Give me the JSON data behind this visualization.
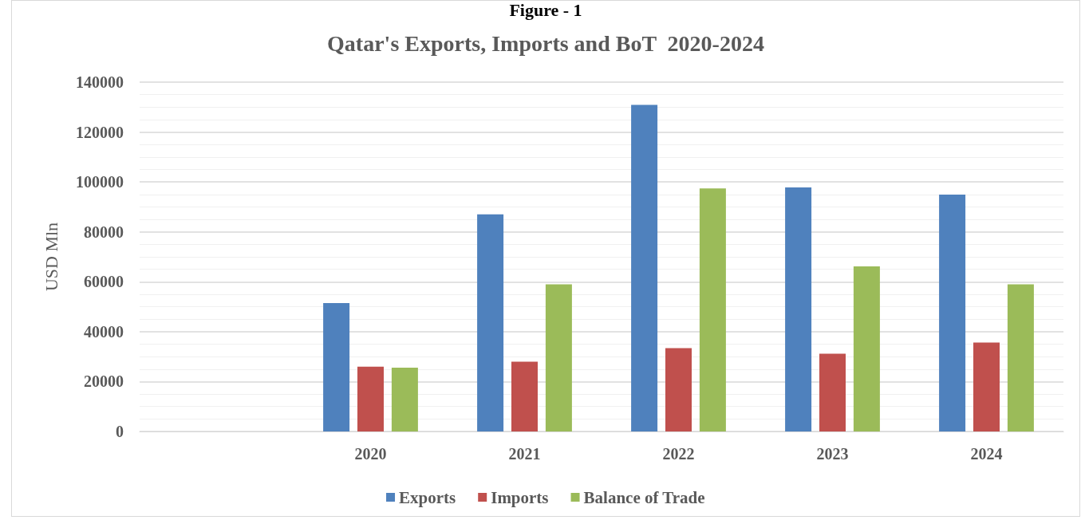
{
  "chart_data": {
    "type": "bar",
    "title": "Qatar's Exports, Imports and BoT  2020-2024",
    "ylabel": "USD Mln",
    "annotations": [
      "Figure - 1"
    ],
    "categories": [
      null,
      "2020",
      "2021",
      "2022",
      "2023",
      "2024"
    ],
    "series": [
      {
        "name": "Exports",
        "color": "#4f81bd",
        "values": [
          null,
          51500,
          87000,
          130900,
          97800,
          94900
        ]
      },
      {
        "name": "Imports",
        "color": "#c0504d",
        "values": [
          null,
          26000,
          28000,
          33400,
          31200,
          35600
        ]
      },
      {
        "name": "Balance of Trade",
        "color": "#9bbb59",
        "values": [
          null,
          25600,
          59000,
          97400,
          66200,
          59000
        ]
      }
    ],
    "ylim": [
      0,
      140000
    ],
    "yticks": [
      0,
      20000,
      40000,
      60000,
      80000,
      100000,
      120000,
      140000
    ],
    "grid": "y",
    "legend": "bottom"
  }
}
